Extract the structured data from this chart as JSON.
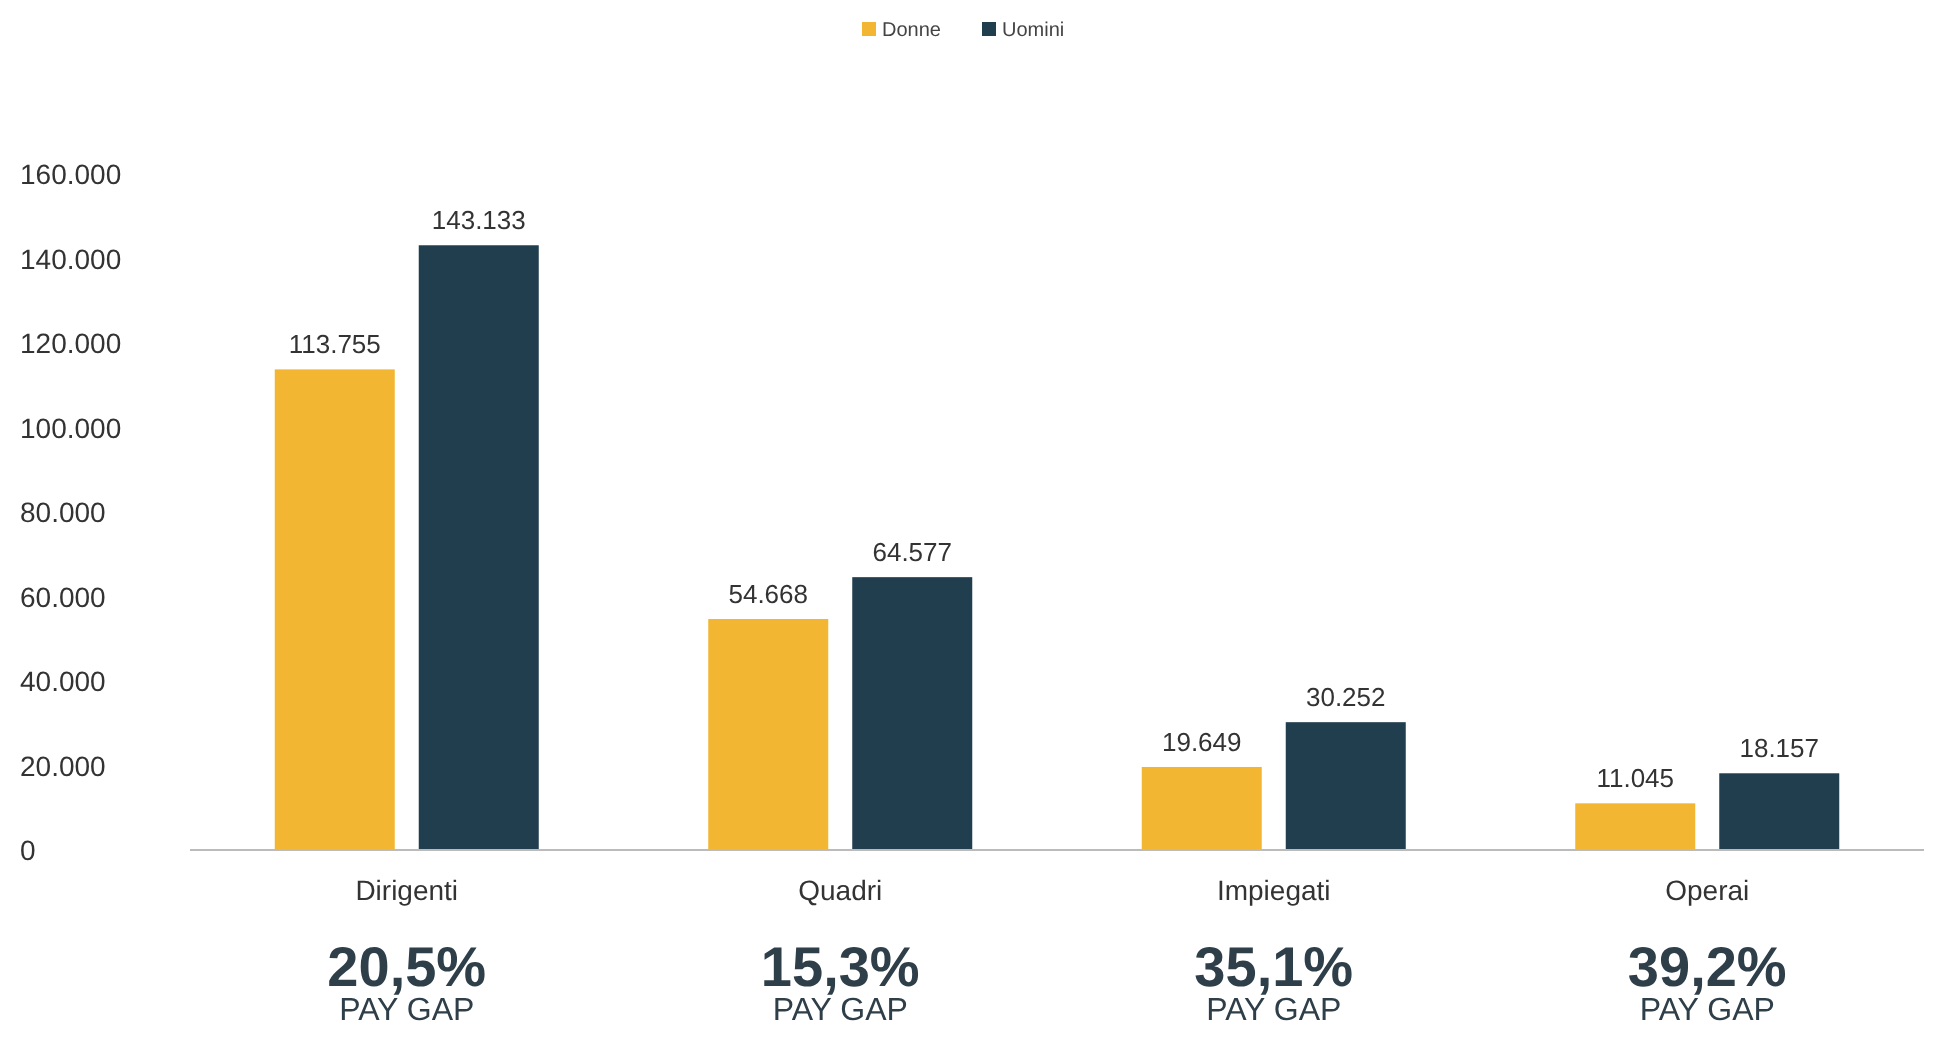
{
  "chart_data": {
    "type": "bar",
    "categories": [
      "Dirigenti",
      "Quadri",
      "Impiegati",
      "Operai"
    ],
    "series": [
      {
        "name": "Donne",
        "color": "#f2b632",
        "values": [
          113755,
          54668,
          19649,
          11045
        ],
        "value_labels": [
          "113.755",
          "54.668",
          "19.649",
          "11.045"
        ]
      },
      {
        "name": "Uomini",
        "color": "#213e4e",
        "values": [
          143133,
          64577,
          30252,
          18157
        ],
        "value_labels": [
          "143.133",
          "64.577",
          "30.252",
          "18.157"
        ]
      }
    ],
    "ylim": [
      0,
      160000
    ],
    "yticks": [
      {
        "value": 0,
        "label": "0"
      },
      {
        "value": 20000,
        "label": "20.000"
      },
      {
        "value": 40000,
        "label": "40.000"
      },
      {
        "value": 60000,
        "label": "60.000"
      },
      {
        "value": 80000,
        "label": "80.000"
      },
      {
        "value": 100000,
        "label": "100.000"
      },
      {
        "value": 120000,
        "label": "120.000"
      },
      {
        "value": 140000,
        "label": "140.000"
      },
      {
        "value": 160000,
        "label": "160.000"
      }
    ],
    "grid": false,
    "legend": "top",
    "annotations": [
      "20,5%\nPAY GAP",
      "15,3%\nPAY GAP",
      "35,1%\nPAY GAP",
      "39,2%\nPAY GAP"
    ]
  }
}
